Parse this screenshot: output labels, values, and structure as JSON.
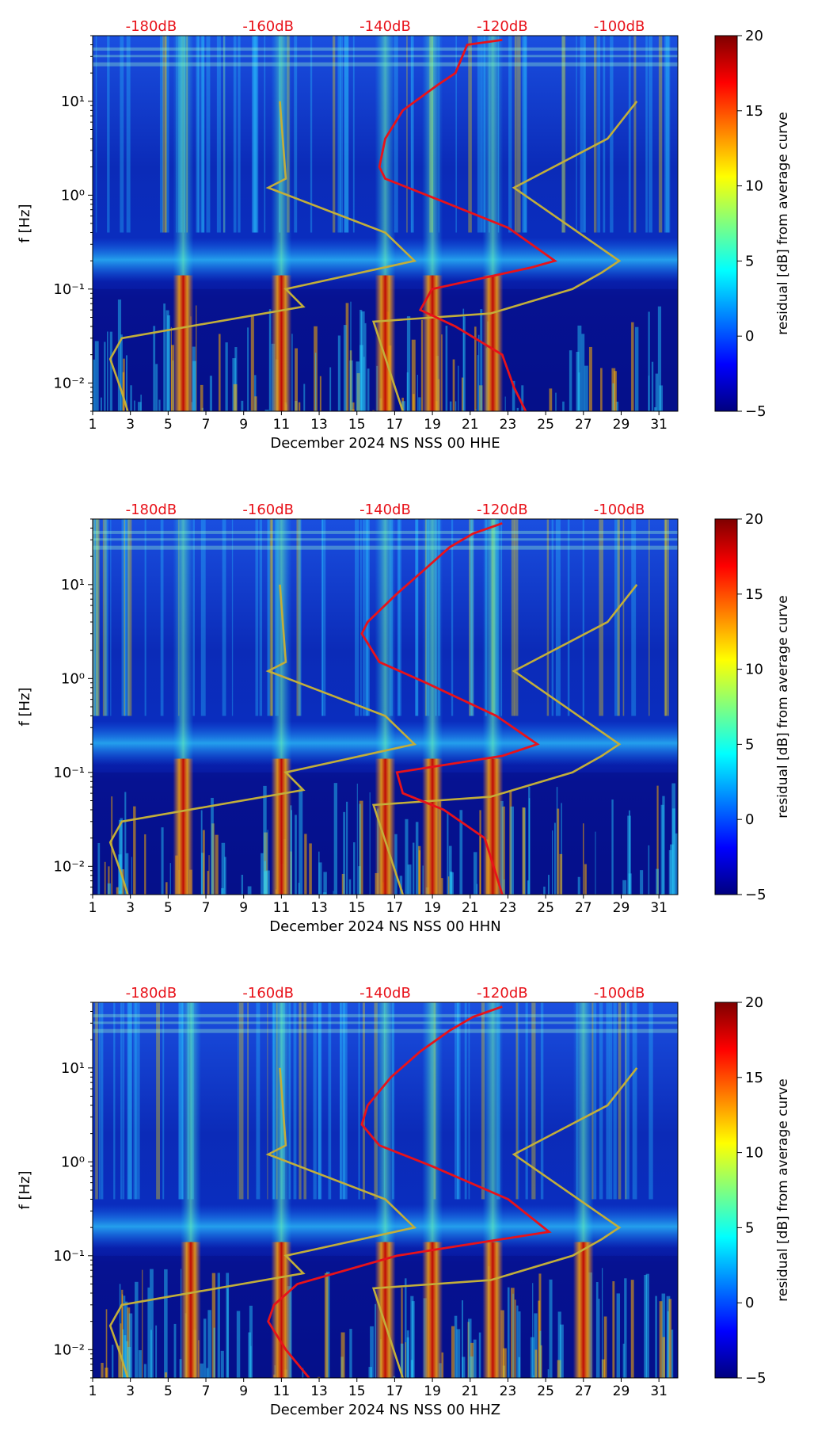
{
  "chart_data": [
    {
      "type": "heatmap",
      "title": "",
      "xlabel": "December 2024 NS NSS 00 HHE",
      "ylabel": "f [Hz]",
      "x_ticks": [
        "1",
        "3",
        "5",
        "7",
        "9",
        "11",
        "13",
        "15",
        "17",
        "19",
        "21",
        "23",
        "25",
        "27",
        "29",
        "31"
      ],
      "y_ticks": [
        "10⁻²",
        "10⁻¹",
        "10⁰",
        "10¹"
      ],
      "top_labels": [
        "-180dB",
        "-160dB",
        "-140dB",
        "-120dB",
        "-100dB"
      ],
      "colorbar_label": "residual [dB] from average curve",
      "colorbar_ticks": [
        "−5",
        "0",
        "5",
        "10",
        "15",
        "20"
      ],
      "xlim": [
        1,
        32
      ],
      "ylim": [
        0.005,
        50
      ],
      "clim": [
        -5,
        20
      ],
      "hot_days": [
        5.8,
        11,
        16.5,
        19,
        22.2
      ],
      "red_curve": [
        {
          "db": -120,
          "f": 45
        },
        {
          "db": -126,
          "f": 40
        },
        {
          "db": -128,
          "f": 20
        },
        {
          "db": -131,
          "f": 15
        },
        {
          "db": -137,
          "f": 8
        },
        {
          "db": -140,
          "f": 4
        },
        {
          "db": -141,
          "f": 2
        },
        {
          "db": -140,
          "f": 1.5
        },
        {
          "db": -131,
          "f": 0.9
        },
        {
          "db": -119,
          "f": 0.45
        },
        {
          "db": -111,
          "f": 0.2
        },
        {
          "db": -115,
          "f": 0.17
        },
        {
          "db": -132,
          "f": 0.1
        },
        {
          "db": -134,
          "f": 0.06
        },
        {
          "db": -128,
          "f": 0.04
        },
        {
          "db": -120,
          "f": 0.02
        },
        {
          "db": -118,
          "f": 0.009
        },
        {
          "db": -116,
          "f": 0.005
        }
      ],
      "yellow_curve": [
        {
          "db": -158,
          "f": 10
        },
        {
          "db": -157,
          "f": 1.5
        },
        {
          "db": -160,
          "f": 1.2
        },
        {
          "db": -140,
          "f": 0.4
        },
        {
          "db": -135,
          "f": 0.2
        },
        {
          "db": -157,
          "f": 0.1
        },
        {
          "db": -154,
          "f": 0.065
        },
        {
          "db": -185,
          "f": 0.03
        },
        {
          "db": -187,
          "f": 0.018
        },
        {
          "db": -186,
          "f": 0.012
        },
        {
          "db": -185,
          "f": 0.008
        },
        {
          "db": -184,
          "f": 0.005
        }
      ],
      "yellow_curve_right": [
        {
          "db": -137,
          "f": 0.005
        },
        {
          "db": -142,
          "f": 0.045
        },
        {
          "db": -122,
          "f": 0.055
        },
        {
          "db": -108,
          "f": 0.1
        },
        {
          "db": -103,
          "f": 0.15
        },
        {
          "db": -100,
          "f": 0.2
        },
        {
          "db": -118,
          "f": 1.2
        },
        {
          "db": -102,
          "f": 4
        },
        {
          "db": -97,
          "f": 10
        }
      ]
    },
    {
      "type": "heatmap",
      "title": "",
      "xlabel": "December 2024 NS NSS 00 HHN",
      "ylabel": "f [Hz]",
      "x_ticks": [
        "1",
        "3",
        "5",
        "7",
        "9",
        "11",
        "13",
        "15",
        "17",
        "19",
        "21",
        "23",
        "25",
        "27",
        "29",
        "31"
      ],
      "y_ticks": [
        "10⁻²",
        "10⁻¹",
        "10⁰",
        "10¹"
      ],
      "top_labels": [
        "-180dB",
        "-160dB",
        "-140dB",
        "-120dB",
        "-100dB"
      ],
      "colorbar_label": "residual [dB] from average curve",
      "colorbar_ticks": [
        "−5",
        "0",
        "5",
        "10",
        "15",
        "20"
      ],
      "xlim": [
        1,
        32
      ],
      "ylim": [
        0.005,
        50
      ],
      "clim": [
        -5,
        20
      ],
      "hot_days": [
        5.8,
        11,
        16.5,
        19,
        22.2
      ],
      "red_curve": [
        {
          "db": -120,
          "f": 45
        },
        {
          "db": -125,
          "f": 35
        },
        {
          "db": -129,
          "f": 25
        },
        {
          "db": -133,
          "f": 15
        },
        {
          "db": -138,
          "f": 8
        },
        {
          "db": -143,
          "f": 4
        },
        {
          "db": -144,
          "f": 3
        },
        {
          "db": -141,
          "f": 1.5
        },
        {
          "db": -133,
          "f": 0.9
        },
        {
          "db": -121,
          "f": 0.4
        },
        {
          "db": -114,
          "f": 0.2
        },
        {
          "db": -120,
          "f": 0.15
        },
        {
          "db": -138,
          "f": 0.1
        },
        {
          "db": -137,
          "f": 0.06
        },
        {
          "db": -130,
          "f": 0.04
        },
        {
          "db": -123,
          "f": 0.02
        },
        {
          "db": -121,
          "f": 0.008
        },
        {
          "db": -120,
          "f": 0.005
        }
      ],
      "yellow_curve": [
        {
          "db": -158,
          "f": 10
        },
        {
          "db": -157,
          "f": 1.5
        },
        {
          "db": -160,
          "f": 1.2
        },
        {
          "db": -140,
          "f": 0.4
        },
        {
          "db": -135,
          "f": 0.2
        },
        {
          "db": -157,
          "f": 0.1
        },
        {
          "db": -154,
          "f": 0.065
        },
        {
          "db": -185,
          "f": 0.03
        },
        {
          "db": -187,
          "f": 0.018
        },
        {
          "db": -186,
          "f": 0.012
        },
        {
          "db": -185,
          "f": 0.008
        },
        {
          "db": -184,
          "f": 0.005
        }
      ],
      "yellow_curve_right": [
        {
          "db": -137,
          "f": 0.005
        },
        {
          "db": -142,
          "f": 0.045
        },
        {
          "db": -122,
          "f": 0.055
        },
        {
          "db": -108,
          "f": 0.1
        },
        {
          "db": -103,
          "f": 0.15
        },
        {
          "db": -100,
          "f": 0.2
        },
        {
          "db": -118,
          "f": 1.2
        },
        {
          "db": -102,
          "f": 4
        },
        {
          "db": -97,
          "f": 10
        }
      ]
    },
    {
      "type": "heatmap",
      "title": "",
      "xlabel": "December 2024 NS NSS 00 HHZ",
      "ylabel": "f [Hz]",
      "x_ticks": [
        "1",
        "3",
        "5",
        "7",
        "9",
        "11",
        "13",
        "15",
        "17",
        "19",
        "21",
        "23",
        "25",
        "27",
        "29",
        "31"
      ],
      "y_ticks": [
        "10⁻²",
        "10⁻¹",
        "10⁰",
        "10¹"
      ],
      "top_labels": [
        "-180dB",
        "-160dB",
        "-140dB",
        "-120dB",
        "-100dB"
      ],
      "colorbar_label": "residual [dB] from average curve",
      "colorbar_ticks": [
        "−5",
        "0",
        "5",
        "10",
        "15",
        "20"
      ],
      "xlim": [
        1,
        32
      ],
      "ylim": [
        0.005,
        50
      ],
      "clim": [
        -5,
        20
      ],
      "hot_days": [
        6.2,
        11,
        16.5,
        19,
        22.2,
        27
      ],
      "red_curve": [
        {
          "db": -120,
          "f": 45
        },
        {
          "db": -125,
          "f": 35
        },
        {
          "db": -129,
          "f": 25
        },
        {
          "db": -134,
          "f": 15
        },
        {
          "db": -139,
          "f": 8
        },
        {
          "db": -143,
          "f": 4
        },
        {
          "db": -144,
          "f": 2.5
        },
        {
          "db": -141,
          "f": 1.5
        },
        {
          "db": -132,
          "f": 0.9
        },
        {
          "db": -119,
          "f": 0.4
        },
        {
          "db": -112,
          "f": 0.18
        },
        {
          "db": -130,
          "f": 0.12
        },
        {
          "db": -138,
          "f": 0.1
        },
        {
          "db": -155,
          "f": 0.05
        },
        {
          "db": -159,
          "f": 0.03
        },
        {
          "db": -160,
          "f": 0.02
        },
        {
          "db": -157,
          "f": 0.01
        },
        {
          "db": -153,
          "f": 0.005
        }
      ],
      "yellow_curve": [
        {
          "db": -158,
          "f": 10
        },
        {
          "db": -157,
          "f": 1.5
        },
        {
          "db": -160,
          "f": 1.2
        },
        {
          "db": -140,
          "f": 0.4
        },
        {
          "db": -135,
          "f": 0.2
        },
        {
          "db": -157,
          "f": 0.1
        },
        {
          "db": -154,
          "f": 0.065
        },
        {
          "db": -185,
          "f": 0.03
        },
        {
          "db": -187,
          "f": 0.018
        },
        {
          "db": -186,
          "f": 0.012
        },
        {
          "db": -185,
          "f": 0.008
        },
        {
          "db": -184,
          "f": 0.005
        }
      ],
      "yellow_curve_right": [
        {
          "db": -137,
          "f": 0.005
        },
        {
          "db": -142,
          "f": 0.045
        },
        {
          "db": -122,
          "f": 0.055
        },
        {
          "db": -108,
          "f": 0.1
        },
        {
          "db": -103,
          "f": 0.15
        },
        {
          "db": -100,
          "f": 0.2
        },
        {
          "db": -118,
          "f": 1.2
        },
        {
          "db": -102,
          "f": 4
        },
        {
          "db": -97,
          "f": 10
        }
      ]
    }
  ],
  "colors": {
    "red_curve": "#e8121a",
    "yellow_curve": "#c2ae3a",
    "top_label": "#e8121a",
    "background_field": "#0a1a9c"
  }
}
